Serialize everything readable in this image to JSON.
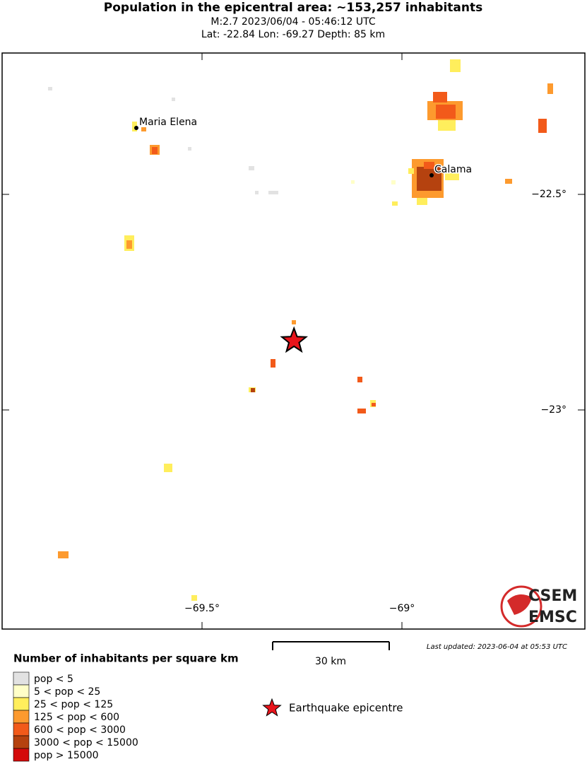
{
  "header": {
    "title": "Population in the epicentral area: ~153,257 inhabitants",
    "line1": "M:2.7 2023/06/04 - 05:46:12 UTC",
    "line2": "Lat: -22.84 Lon: -69.27 Depth: 85 km"
  },
  "map": {
    "lat_ticks": [
      {
        "value": -22.5,
        "label": "−22.5°"
      },
      {
        "value": -23,
        "label": "−23°"
      }
    ],
    "lon_ticks": [
      {
        "value": -69.5,
        "label": "−69.5°"
      },
      {
        "value": -69,
        "label": "−69°"
      }
    ],
    "cities": [
      "Maria Elena",
      "Calama"
    ],
    "epicentre": {
      "lat": -22.84,
      "lon": -69.27
    },
    "scale_label": "30 km",
    "last_updated": "Last updated: 2023-06-04 at 05:53 UTC",
    "logo": [
      "CSEM",
      "EMSC"
    ]
  },
  "legend": {
    "title": "Number of inhabitants per square km",
    "items": [
      {
        "label": "pop < 5",
        "color": "#e2e2e2"
      },
      {
        "label": "5 < pop < 25",
        "color": "#ffffc8"
      },
      {
        "label": "25 < pop < 125",
        "color": "#ffee5c"
      },
      {
        "label": "125 < pop < 600",
        "color": "#fd9a2e"
      },
      {
        "label": "600 < pop < 3000",
        "color": "#f25a1a"
      },
      {
        "label": "3000 < pop < 15000",
        "color": "#b5420f"
      },
      {
        "label": "pop > 15000",
        "color": "#d40b0b"
      }
    ],
    "epicentre_label": "Earthquake epicentre"
  }
}
